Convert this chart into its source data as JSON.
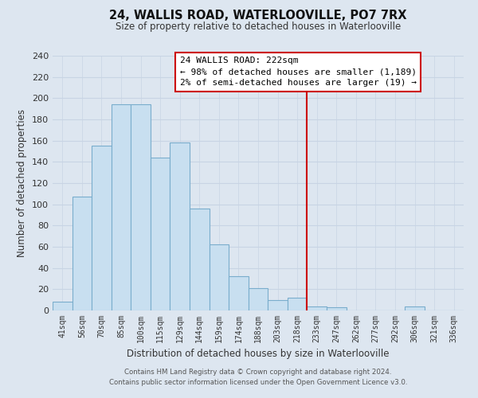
{
  "title": "24, WALLIS ROAD, WATERLOOVILLE, PO7 7RX",
  "subtitle": "Size of property relative to detached houses in Waterlooville",
  "xlabel": "Distribution of detached houses by size in Waterlooville",
  "ylabel": "Number of detached properties",
  "bar_labels": [
    "41sqm",
    "56sqm",
    "70sqm",
    "85sqm",
    "100sqm",
    "115sqm",
    "129sqm",
    "144sqm",
    "159sqm",
    "174sqm",
    "188sqm",
    "203sqm",
    "218sqm",
    "233sqm",
    "247sqm",
    "262sqm",
    "277sqm",
    "292sqm",
    "306sqm",
    "321sqm",
    "336sqm"
  ],
  "bar_values": [
    8,
    107,
    155,
    194,
    194,
    144,
    158,
    96,
    62,
    32,
    21,
    10,
    12,
    4,
    3,
    0,
    0,
    0,
    4,
    0,
    0
  ],
  "bar_color": "#c8dff0",
  "bar_edge_color": "#7aadcc",
  "grid_color": "#c8d4e4",
  "background_color": "#dde6f0",
  "property_line_color": "#cc0000",
  "annotation_title": "24 WALLIS ROAD: 222sqm",
  "annotation_line1": "← 98% of detached houses are smaller (1,189)",
  "annotation_line2": "2% of semi-detached houses are larger (19) →",
  "annotation_box_color": "#ffffff",
  "annotation_box_edge": "#cc0000",
  "footer_line1": "Contains HM Land Registry data © Crown copyright and database right 2024.",
  "footer_line2": "Contains public sector information licensed under the Open Government Licence v3.0.",
  "ylim": [
    0,
    240
  ],
  "yticks": [
    0,
    20,
    40,
    60,
    80,
    100,
    120,
    140,
    160,
    180,
    200,
    220,
    240
  ]
}
